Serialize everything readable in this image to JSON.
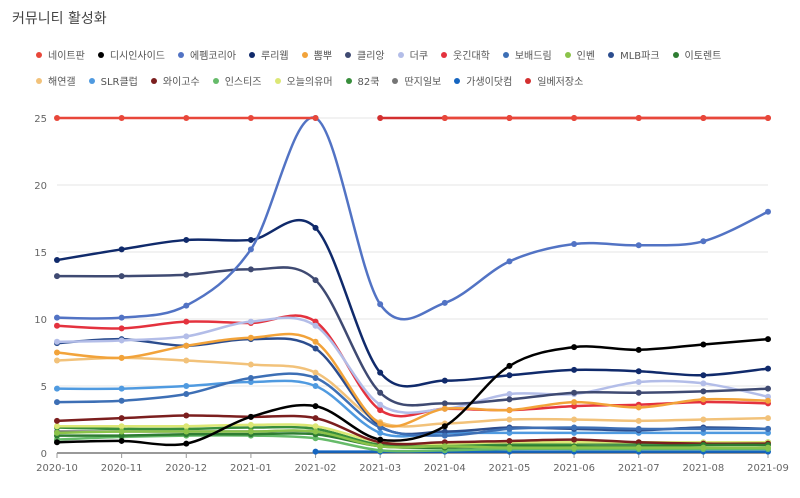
{
  "page": {
    "title": "커뮤니티 활성화"
  },
  "chart_data": {
    "type": "line",
    "title": "커뮤니티 활성화",
    "xlabel": "",
    "ylabel": "",
    "ylim": [
      0,
      25
    ],
    "yticks": [
      0,
      5,
      10,
      15,
      20,
      25
    ],
    "grid": true,
    "legend_position": "top",
    "categories": [
      "2020-10",
      "2020-11",
      "2020-12",
      "2021-01",
      "2021-02",
      "2021-03",
      "2021-04",
      "2021-05",
      "2021-06",
      "2021-07",
      "2021-08",
      "2021-09"
    ],
    "series": [
      {
        "name": "네이트판",
        "color": "#e8473a",
        "values": [
          25,
          25,
          25,
          25,
          25,
          null,
          25,
          25,
          25,
          25,
          25,
          25
        ]
      },
      {
        "name": "디시인사이드",
        "color": "#000000",
        "values": [
          0.8,
          0.9,
          0.7,
          2.7,
          3.5,
          1,
          2,
          6.5,
          7.9,
          7.7,
          8.1,
          8.5
        ]
      },
      {
        "name": "에펨코리아",
        "color": "#5273c4",
        "values": [
          10.1,
          10.1,
          11,
          15.2,
          25,
          11.1,
          11.2,
          14.3,
          15.6,
          15.5,
          15.8,
          18
        ]
      },
      {
        "name": "루리웹",
        "color": "#102a6b",
        "values": [
          14.4,
          15.2,
          15.9,
          15.9,
          16.8,
          6,
          5.4,
          5.8,
          6.2,
          6.1,
          5.8,
          6.3
        ]
      },
      {
        "name": "뽐뿌",
        "color": "#f2a33a",
        "values": [
          7.5,
          7.1,
          8,
          8.6,
          8.3,
          2.2,
          3.3,
          3.2,
          3.8,
          3.4,
          4,
          3.9
        ]
      },
      {
        "name": "클리앙",
        "color": "#3f4a72",
        "values": [
          13.2,
          13.2,
          13.3,
          13.7,
          12.9,
          4.5,
          3.7,
          4,
          4.5,
          4.5,
          4.6,
          4.8
        ]
      },
      {
        "name": "더쿠",
        "color": "#b3bde8",
        "values": [
          8.3,
          8.4,
          8.7,
          9.8,
          9.5,
          3.6,
          3.3,
          4.4,
          4.4,
          5.3,
          5.2,
          4.2
        ]
      },
      {
        "name": "웃긴대학",
        "color": "#e4323e",
        "values": [
          9.5,
          9.3,
          9.8,
          9.7,
          9.8,
          3.2,
          3.3,
          3.2,
          3.5,
          3.6,
          3.8,
          3.7
        ]
      },
      {
        "name": "보배드림",
        "color": "#3d6fb5",
        "values": [
          3.8,
          3.9,
          4.4,
          5.6,
          5.6,
          1.9,
          1.3,
          1.8,
          1.9,
          1.8,
          1.8,
          1.8
        ]
      },
      {
        "name": "인벤",
        "color": "#8bc34a",
        "values": [
          1.5,
          1.6,
          1.6,
          1.6,
          1.6,
          0.5,
          0.5,
          0.4,
          0.4,
          0.4,
          0.4,
          0.4
        ]
      },
      {
        "name": "MLB파크",
        "color": "#2c4d8e",
        "values": [
          8.2,
          8.5,
          8,
          8.5,
          7.8,
          2,
          1.6,
          1.9,
          1.8,
          1.7,
          1.9,
          1.8
        ]
      },
      {
        "name": "이토렌트",
        "color": "#2e7d32",
        "values": [
          1.3,
          1.3,
          1.4,
          1.4,
          1.4,
          0.5,
          0.4,
          0.5,
          0.5,
          0.5,
          0.6,
          0.6
        ]
      },
      {
        "name": "해연갤",
        "color": "#f2c27a",
        "values": [
          6.9,
          7.1,
          6.9,
          6.6,
          6,
          2.3,
          2.2,
          2.5,
          2.5,
          2.4,
          2.5,
          2.6
        ]
      },
      {
        "name": "SLR클럽",
        "color": "#4f9ae0",
        "values": [
          4.8,
          4.8,
          5,
          5.3,
          5,
          1.5,
          1.5,
          1.5,
          1.5,
          1.5,
          1.5,
          1.5
        ]
      },
      {
        "name": "와이고수",
        "color": "#7b1e1e",
        "values": [
          2.4,
          2.6,
          2.8,
          2.7,
          2.6,
          0.8,
          0.8,
          0.9,
          1,
          0.8,
          0.7,
          0.7
        ]
      },
      {
        "name": "인스티즈",
        "color": "#66bb6a",
        "values": [
          1,
          1.2,
          1.3,
          1.3,
          1.1,
          0.2,
          0.2,
          0.3,
          0.3,
          0.3,
          0.3,
          0.3
        ]
      },
      {
        "name": "오늘의유머",
        "color": "#dce775",
        "values": [
          2,
          2,
          2,
          2.1,
          2,
          0.8,
          0.7,
          0.8,
          0.8,
          0.8,
          0.8,
          0.8
        ]
      },
      {
        "name": "82쿡",
        "color": "#388e3c",
        "values": [
          1.9,
          1.8,
          1.8,
          1.9,
          1.8,
          0.6,
          0.6,
          0.6,
          0.7,
          0.7,
          0.7,
          0.8
        ]
      },
      {
        "name": "딴지일보",
        "color": "#757575",
        "values": [
          1.6,
          1.6,
          1.6,
          1.6,
          1.6,
          0.6,
          0.6,
          0.7,
          0.7,
          0.7,
          0.7,
          0.7
        ]
      },
      {
        "name": "가생이닷컴",
        "color": "#1565c0",
        "values": [
          null,
          null,
          null,
          null,
          0.1,
          0.1,
          0.1,
          0.1,
          0.1,
          0.1,
          0.1,
          0.1
        ]
      },
      {
        "name": "일베저장소",
        "color": "#d32f2f",
        "values": [
          null,
          null,
          null,
          null,
          null,
          25,
          25,
          25,
          25,
          25,
          25,
          25
        ]
      }
    ]
  }
}
